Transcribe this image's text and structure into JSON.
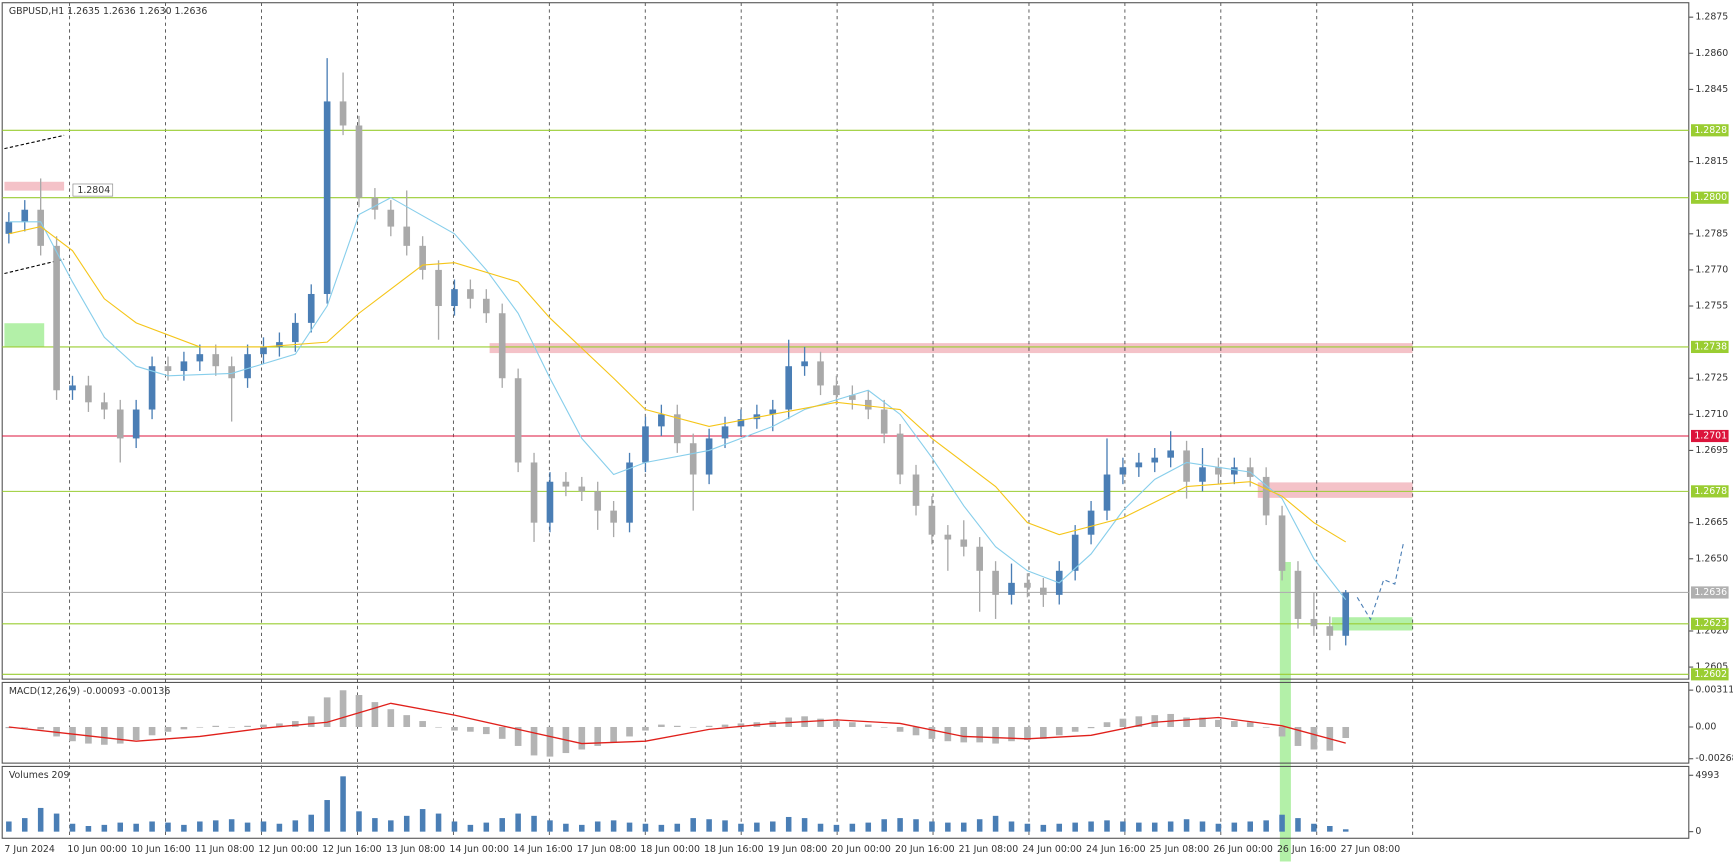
{
  "chart_data": {
    "type": "candlestick",
    "title": "GBPUSD,H1  1.2635 1.2636 1.2630 1.2636",
    "annotation": "1.2804",
    "up_color": "#4a7eb5",
    "down_color": "#a9a9a9",
    "ylim": [
      1.26,
      1.2881
    ],
    "yticks": [
      1.2875,
      {
        "value": 1.286,
        "label": "1.2860"
      },
      1.2845,
      1.2815,
      1.2785,
      {
        "value": 1.277,
        "label": "1.2770"
      },
      1.2755,
      1.2725,
      {
        "value": 1.271,
        "label": "1.2710"
      },
      1.2695,
      1.2665,
      {
        "value": 1.265,
        "label": "1.2650"
      },
      {
        "value": 1.262,
        "label": "1.2620"
      },
      1.2605
    ],
    "levels": [
      {
        "value": 1.2828,
        "label": "1.2828",
        "color": "#9acd32"
      },
      {
        "value": 1.28,
        "label": "1.2800",
        "color": "#9acd32"
      },
      {
        "value": 1.2738,
        "label": "1.2738",
        "color": "#9acd32"
      },
      {
        "value": 1.2701,
        "label": "1.2701",
        "color": "#dc143c"
      },
      {
        "value": 1.2678,
        "label": "1.2678",
        "color": "#9acd32"
      },
      {
        "value": 1.2636,
        "label": "1.2636",
        "color": "#b0b0b0"
      },
      {
        "value": 1.2623,
        "label": "1.2623",
        "color": "#9acd32"
      },
      {
        "value": 1.2602,
        "label": "1.2602",
        "color": "#9acd32"
      }
    ],
    "categories": [
      "7 Jun 2024",
      "10 Jun 00:00",
      "10 Jun 16:00",
      "11 Jun 08:00",
      "12 Jun 00:00",
      "12 Jun 16:00",
      "13 Jun 08:00",
      "14 Jun 00:00",
      "14 Jun 16:00",
      "17 Jun 08:00",
      "18 Jun 00:00",
      "18 Jun 16:00",
      "19 Jun 08:00",
      "20 Jun 00:00",
      "20 Jun 16:00",
      "21 Jun 08:00",
      "24 Jun 00:00",
      "24 Jun 16:00",
      "25 Jun 08:00",
      "26 Jun 00:00",
      "26 Jun 16:00",
      "27 Jun 08:00"
    ],
    "ohlc": [
      [
        1.2785,
        1.2794,
        1.2781,
        1.279
      ],
      [
        1.279,
        1.2799,
        1.2786,
        1.2795
      ],
      [
        1.2795,
        1.2808,
        1.2776,
        1.278
      ],
      [
        1.278,
        1.2784,
        1.2716,
        1.272
      ],
      [
        1.272,
        1.2726,
        1.2716,
        1.2722
      ],
      [
        1.2722,
        1.2726,
        1.2711,
        1.2715
      ],
      [
        1.2715,
        1.2719,
        1.2708,
        1.2712
      ],
      [
        1.2712,
        1.2716,
        1.269,
        1.27
      ],
      [
        1.27,
        1.2716,
        1.2696,
        1.2712
      ],
      [
        1.2712,
        1.2734,
        1.2708,
        1.273
      ],
      [
        1.273,
        1.2734,
        1.2724,
        1.2728
      ],
      [
        1.2728,
        1.2736,
        1.2724,
        1.2732
      ],
      [
        1.2732,
        1.2739,
        1.2728,
        1.2735
      ],
      [
        1.2735,
        1.2739,
        1.2726,
        1.273
      ],
      [
        1.273,
        1.2734,
        1.2707,
        1.2725
      ],
      [
        1.2725,
        1.2739,
        1.2721,
        1.2735
      ],
      [
        1.2735,
        1.2742,
        1.2731,
        1.2738
      ],
      [
        1.2738,
        1.2744,
        1.2734,
        1.274
      ],
      [
        1.274,
        1.2752,
        1.2736,
        1.2748
      ],
      [
        1.2748,
        1.2764,
        1.2744,
        1.276
      ],
      [
        1.276,
        1.2858,
        1.2756,
        1.284
      ],
      [
        1.284,
        1.2852,
        1.2826,
        1.283
      ],
      [
        1.283,
        1.2834,
        1.2796,
        1.28
      ],
      [
        1.28,
        1.2804,
        1.2791,
        1.2795
      ],
      [
        1.2795,
        1.2799,
        1.2784,
        1.2788
      ],
      [
        1.2788,
        1.2803,
        1.2776,
        1.278
      ],
      [
        1.278,
        1.2784,
        1.2766,
        1.277
      ],
      [
        1.277,
        1.2774,
        1.2741,
        1.2755
      ],
      [
        1.2755,
        1.2766,
        1.2751,
        1.2762
      ],
      [
        1.2762,
        1.2766,
        1.2754,
        1.2758
      ],
      [
        1.2758,
        1.2762,
        1.2748,
        1.2752
      ],
      [
        1.2752,
        1.2756,
        1.2721,
        1.2725
      ],
      [
        1.2725,
        1.2729,
        1.2686,
        1.269
      ],
      [
        1.269,
        1.2694,
        1.2657,
        1.2665
      ],
      [
        1.2665,
        1.2686,
        1.2661,
        1.2682
      ],
      [
        1.2682,
        1.2686,
        1.2676,
        1.268
      ],
      [
        1.268,
        1.2684,
        1.2674,
        1.2678
      ],
      [
        1.2678,
        1.2682,
        1.2662,
        1.267
      ],
      [
        1.267,
        1.2674,
        1.2659,
        1.2665
      ],
      [
        1.2665,
        1.2694,
        1.2661,
        1.269
      ],
      [
        1.269,
        1.2709,
        1.2686,
        1.2705
      ],
      [
        1.2705,
        1.2714,
        1.2701,
        1.271
      ],
      [
        1.271,
        1.2714,
        1.2694,
        1.2698
      ],
      [
        1.2698,
        1.2702,
        1.267,
        1.2685
      ],
      [
        1.2685,
        1.2704,
        1.2681,
        1.27
      ],
      [
        1.27,
        1.2709,
        1.2696,
        1.2705
      ],
      [
        1.2705,
        1.2712,
        1.2701,
        1.2708
      ],
      [
        1.2708,
        1.2714,
        1.2704,
        1.271
      ],
      [
        1.271,
        1.2716,
        1.2703,
        1.2712
      ],
      [
        1.2712,
        1.2741,
        1.2708,
        1.273
      ],
      [
        1.273,
        1.2738,
        1.2726,
        1.2732
      ],
      [
        1.2732,
        1.2736,
        1.2718,
        1.2722
      ],
      [
        1.2722,
        1.2726,
        1.2714,
        1.2718
      ],
      [
        1.2718,
        1.2722,
        1.2712,
        1.2716
      ],
      [
        1.2716,
        1.272,
        1.2708,
        1.2712
      ],
      [
        1.2712,
        1.2716,
        1.2698,
        1.2702
      ],
      [
        1.2702,
        1.2706,
        1.2681,
        1.2685
      ],
      [
        1.2685,
        1.2689,
        1.2668,
        1.2672
      ],
      [
        1.2672,
        1.2676,
        1.2656,
        1.266
      ],
      [
        1.266,
        1.2664,
        1.2645,
        1.2658
      ],
      [
        1.2658,
        1.2666,
        1.2651,
        1.2655
      ],
      [
        1.2655,
        1.2659,
        1.2628,
        1.2645
      ],
      [
        1.2645,
        1.2649,
        1.2625,
        1.2635
      ],
      [
        1.2635,
        1.2648,
        1.2631,
        1.264
      ],
      [
        1.264,
        1.2644,
        1.2634,
        1.2638
      ],
      [
        1.2638,
        1.2642,
        1.263,
        1.2635
      ],
      [
        1.2635,
        1.2649,
        1.2631,
        1.2645
      ],
      [
        1.2645,
        1.2664,
        1.2641,
        1.266
      ],
      [
        1.266,
        1.2674,
        1.2656,
        1.267
      ],
      [
        1.267,
        1.27,
        1.2666,
        1.2685
      ],
      [
        1.2685,
        1.2692,
        1.2681,
        1.2688
      ],
      [
        1.2688,
        1.2694,
        1.2684,
        1.269
      ],
      [
        1.269,
        1.2696,
        1.2686,
        1.2692
      ],
      [
        1.2692,
        1.2703,
        1.2688,
        1.2695
      ],
      [
        1.2695,
        1.2699,
        1.2675,
        1.2682
      ],
      [
        1.2682,
        1.2696,
        1.2678,
        1.2688
      ],
      [
        1.2688,
        1.2692,
        1.2681,
        1.2685
      ],
      [
        1.2685,
        1.2692,
        1.2681,
        1.2688
      ],
      [
        1.2688,
        1.2692,
        1.268,
        1.2684
      ],
      [
        1.2684,
        1.2688,
        1.2664,
        1.2668
      ],
      [
        1.2668,
        1.2672,
        1.2641,
        1.2645
      ],
      [
        1.2645,
        1.2649,
        1.2621,
        1.2625
      ],
      [
        1.2625,
        1.2636,
        1.2618,
        1.2622
      ],
      [
        1.2622,
        1.2626,
        1.2612,
        1.2618
      ],
      [
        1.2618,
        1.2637,
        1.2614,
        1.2636
      ]
    ],
    "series": [
      {
        "color": "#87ceeb",
        "x": [
          0,
          2,
          4,
          6,
          8,
          10,
          14,
          18,
          20,
          22,
          24,
          28,
          30,
          32,
          34,
          36,
          38,
          40,
          44,
          48,
          50,
          54,
          56,
          58,
          60,
          62,
          64,
          66,
          68,
          70,
          72,
          74,
          76,
          78,
          80,
          82,
          84
        ],
        "values": [
          1.279,
          1.279,
          1.2765,
          1.2742,
          1.273,
          1.2726,
          1.2727,
          1.2735,
          1.2755,
          1.2793,
          1.28,
          1.2785,
          1.277,
          1.2752,
          1.2725,
          1.27,
          1.2685,
          1.269,
          1.2695,
          1.2705,
          1.2712,
          1.272,
          1.271,
          1.2692,
          1.2672,
          1.2655,
          1.2645,
          1.264,
          1.2652,
          1.267,
          1.2683,
          1.269,
          1.2688,
          1.2686,
          1.2675,
          1.265,
          1.2633
        ]
      },
      {
        "color": "#f5c518",
        "x": [
          0,
          2,
          4,
          6,
          8,
          12,
          16,
          20,
          22,
          26,
          28,
          32,
          34,
          38,
          40,
          44,
          48,
          52,
          56,
          58,
          62,
          64,
          66,
          70,
          74,
          78,
          80,
          82,
          84
        ],
        "values": [
          1.2785,
          1.2788,
          1.2778,
          1.2758,
          1.2748,
          1.2738,
          1.2738,
          1.274,
          1.2752,
          1.2772,
          1.2773,
          1.2765,
          1.275,
          1.2725,
          1.2712,
          1.2705,
          1.271,
          1.2715,
          1.2712,
          1.27,
          1.268,
          1.2665,
          1.266,
          1.2667,
          1.268,
          1.2682,
          1.2676,
          1.2665,
          1.2657
        ]
      }
    ],
    "macd": {
      "title": "MACD(12,26,9) -0.00093 -0.00136",
      "ylim": [
        -0.00305,
        0.00376
      ],
      "yticks": [
        0.00311,
        {
          "value": 0,
          "label": "0.00"
        },
        -0.00268
      ],
      "hist_color": "#b4b4b4",
      "histogram": [
        -0.0001,
        0.0,
        -0.0002,
        -0.0008,
        -0.0012,
        -0.0014,
        -0.0015,
        -0.0014,
        -0.0011,
        -0.0007,
        -0.0004,
        -0.0002,
        0.0,
        0.0001,
        0.0,
        0.0001,
        0.0002,
        0.0003,
        0.0005,
        0.0009,
        0.0025,
        0.0031,
        0.0027,
        0.0021,
        0.0015,
        0.001,
        0.0005,
        0.0,
        -0.0003,
        -0.0004,
        -0.0006,
        -0.001,
        -0.0016,
        -0.0024,
        -0.0025,
        -0.0022,
        -0.0019,
        -0.0016,
        -0.0013,
        -0.0008,
        -0.0003,
        0.0002,
        0.0001,
        0.0,
        0.0001,
        0.0002,
        0.0003,
        0.0004,
        0.0005,
        0.0008,
        0.0009,
        0.0007,
        0.0005,
        0.0004,
        0.0002,
        0.0,
        -0.0004,
        -0.0007,
        -0.001,
        -0.0012,
        -0.0013,
        -0.0013,
        -0.0014,
        -0.0012,
        -0.0011,
        -0.001,
        -0.0007,
        -0.0004,
        -0.0001,
        0.0004,
        0.0007,
        0.0009,
        0.001,
        0.0011,
        0.0008,
        0.0008,
        0.0006,
        0.0005,
        0.0004,
        0.0,
        -0.0008,
        -0.0016,
        -0.0019,
        -0.002,
        -0.00093
      ],
      "signal": {
        "color": "#e0201b",
        "x": [
          0,
          4,
          8,
          12,
          16,
          20,
          24,
          28,
          32,
          36,
          40,
          44,
          48,
          52,
          56,
          60,
          64,
          68,
          72,
          76,
          80,
          84
        ],
        "values": [
          0.0,
          -0.0006,
          -0.0012,
          -0.0008,
          -0.0001,
          0.0004,
          0.002,
          0.001,
          -0.0002,
          -0.0014,
          -0.0012,
          -0.0002,
          0.0003,
          0.0006,
          0.0003,
          -0.0008,
          -0.001,
          -0.0007,
          0.0004,
          0.0008,
          0.0001,
          -0.00136
        ]
      }
    },
    "volumes": {
      "title": "Volumes 209",
      "ylim": [
        0,
        5776
      ],
      "yticks": [
        4993,
        0
      ],
      "color": "#4a7eb5",
      "values": [
        900,
        1200,
        2100,
        1600,
        700,
        500,
        600,
        800,
        700,
        900,
        800,
        600,
        900,
        1000,
        1100,
        800,
        900,
        700,
        1000,
        1500,
        2800,
        4900,
        1800,
        1200,
        1000,
        1400,
        2000,
        1600,
        900,
        600,
        800,
        1200,
        1600,
        1400,
        1000,
        700,
        600,
        900,
        1000,
        800,
        700,
        600,
        700,
        1200,
        1100,
        1000,
        700,
        800,
        900,
        1300,
        1200,
        700,
        600,
        700,
        800,
        1100,
        1200,
        1100,
        900,
        800,
        800,
        1100,
        1400,
        900,
        700,
        600,
        700,
        800,
        900,
        1000,
        900,
        800,
        800,
        900,
        1100,
        900,
        700,
        800,
        900,
        1000,
        1500,
        1200,
        700,
        500,
        209
      ]
    }
  }
}
